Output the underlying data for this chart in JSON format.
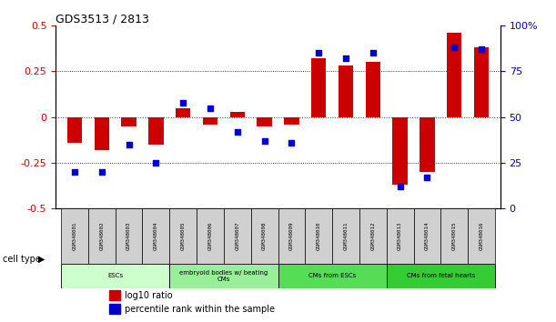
{
  "title": "GDS3513 / 2813",
  "samples": [
    "GSM348001",
    "GSM348002",
    "GSM348003",
    "GSM348004",
    "GSM348005",
    "GSM348006",
    "GSM348007",
    "GSM348008",
    "GSM348009",
    "GSM348010",
    "GSM348011",
    "GSM348012",
    "GSM348013",
    "GSM348014",
    "GSM348015",
    "GSM348016"
  ],
  "log10_ratio": [
    -0.14,
    -0.18,
    -0.05,
    -0.15,
    0.05,
    -0.04,
    0.03,
    -0.05,
    -0.04,
    0.32,
    0.28,
    0.3,
    -0.37,
    -0.3,
    0.46,
    0.38
  ],
  "percentile_rank": [
    20,
    20,
    35,
    25,
    58,
    55,
    42,
    37,
    36,
    85,
    82,
    85,
    12,
    17,
    88,
    87
  ],
  "ylim_left": [
    -0.5,
    0.5
  ],
  "ylim_right": [
    0,
    100
  ],
  "yticks_left": [
    -0.5,
    -0.25,
    0,
    0.25,
    0.5
  ],
  "yticks_right": [
    0,
    25,
    50,
    75,
    100
  ],
  "ytick_labels_right": [
    "0",
    "25",
    "50",
    "75",
    "100%"
  ],
  "bar_color": "#cc0000",
  "dot_color": "#0000cc",
  "zero_line_color": "#cc0000",
  "grid_color": "#000000",
  "cell_groups": [
    {
      "label": "ESCs",
      "start": 0,
      "end": 3,
      "color": "#ccffcc"
    },
    {
      "label": "embryoid bodies w/ beating\nCMs",
      "start": 4,
      "end": 7,
      "color": "#99ee99"
    },
    {
      "label": "CMs from ESCs",
      "start": 8,
      "end": 11,
      "color": "#55dd55"
    },
    {
      "label": "CMs from fetal hearts",
      "start": 12,
      "end": 15,
      "color": "#33cc33"
    }
  ],
  "legend_bar_label": "log10 ratio",
  "legend_dot_label": "percentile rank within the sample",
  "xlabel_cell_type": "cell type",
  "bar_width": 0.55,
  "bg_color": "#ffffff"
}
